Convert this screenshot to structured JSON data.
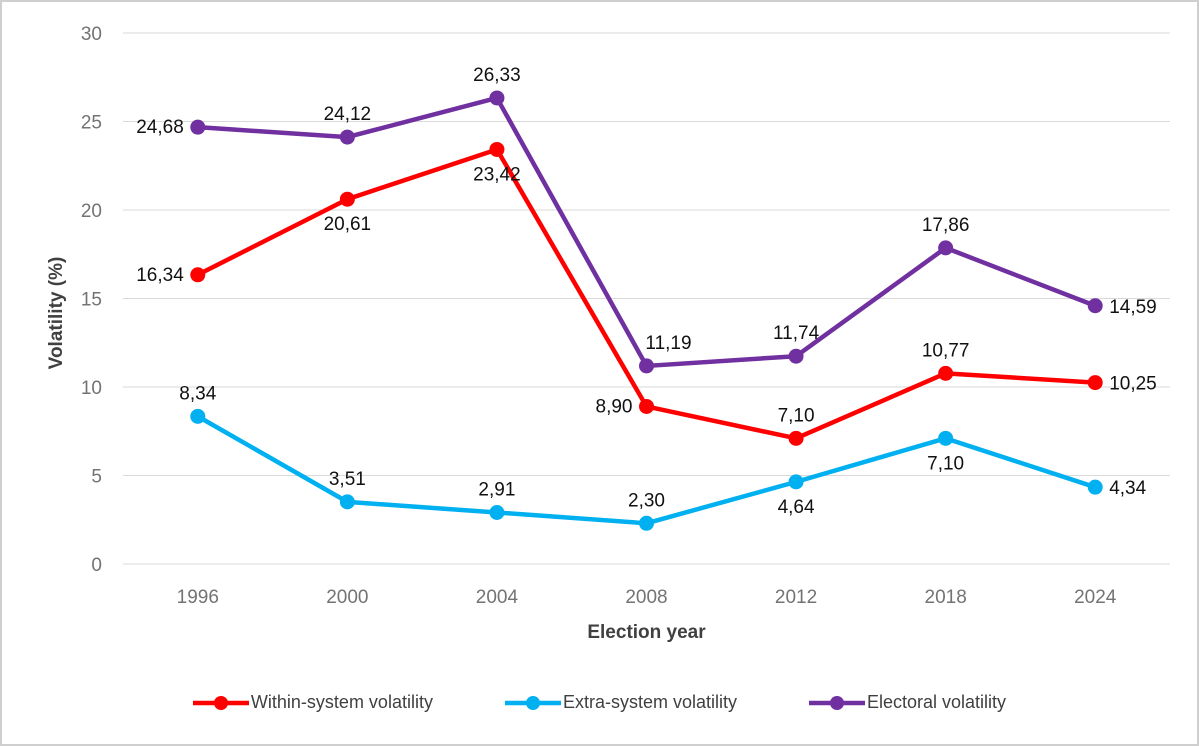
{
  "chart_data": {
    "type": "line",
    "title": "",
    "xlabel": "Election year",
    "ylabel": "Volatility (%)",
    "categories": [
      "1996",
      "2000",
      "2004",
      "2008",
      "2012",
      "2018",
      "2024"
    ],
    "ylim": [
      0,
      30
    ],
    "ytick_step": 5,
    "ytick_labels": [
      "0",
      "5",
      "10",
      "15",
      "20",
      "25",
      "30"
    ],
    "grid": "horizontal-only",
    "gridline_color": "#d9d9d9",
    "tick_label_color": "#737373",
    "axis_title_color": "#404040",
    "data_label_color": "#111111",
    "legend_position": "bottom",
    "decimal_separator": ",",
    "series": [
      {
        "name": "Within-system volatility",
        "color": "#ff0000",
        "marker": "circle",
        "values": [
          16.34,
          20.61,
          23.42,
          8.9,
          7.1,
          10.77,
          10.25
        ],
        "value_labels": [
          "16,34",
          "20,61",
          "23,42",
          "8,90",
          "7,10",
          "10,77",
          "10,25"
        ],
        "label_positions": [
          "left",
          "below",
          "below",
          "left",
          "above",
          "above",
          "right"
        ]
      },
      {
        "name": "Extra-system volatility",
        "color": "#00b0f0",
        "marker": "circle",
        "values": [
          8.34,
          3.51,
          2.91,
          2.3,
          4.64,
          7.1,
          4.34
        ],
        "value_labels": [
          "8,34",
          "3,51",
          "2,91",
          "2,30",
          "4,64",
          "7,10",
          "4,34"
        ],
        "label_positions": [
          "above",
          "above",
          "above",
          "above",
          "below",
          "below",
          "right"
        ]
      },
      {
        "name": "Electoral volatility",
        "color": "#7030a0",
        "marker": "circle",
        "values": [
          24.68,
          24.12,
          26.33,
          11.19,
          11.74,
          17.86,
          14.59
        ],
        "value_labels": [
          "24,68",
          "24,12",
          "26,33",
          "11,19",
          "11,74",
          "17,86",
          "14,59"
        ],
        "label_positions": [
          "left",
          "above",
          "above",
          "above-right",
          "above",
          "above",
          "right"
        ]
      }
    ]
  }
}
